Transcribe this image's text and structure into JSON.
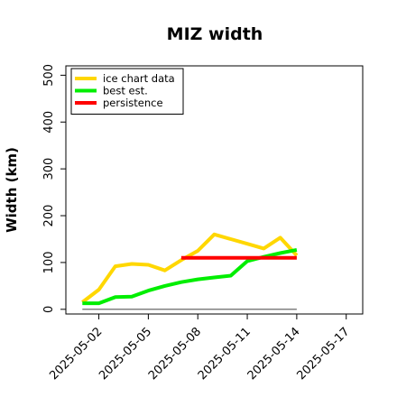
{
  "chart_data": {
    "type": "line",
    "title": "MIZ width",
    "xlabel": "",
    "ylabel": "Width (km)",
    "x": [
      "2025-05-01",
      "2025-05-02",
      "2025-05-03",
      "2025-05-04",
      "2025-05-05",
      "2025-05-06",
      "2025-05-07",
      "2025-05-08",
      "2025-05-09",
      "2025-05-10",
      "2025-05-11",
      "2025-05-12",
      "2025-05-13",
      "2025-05-14"
    ],
    "xlim": [
      "2025-04-30",
      "2025-05-18"
    ],
    "xticks": [
      "2025-05-02",
      "2025-05-05",
      "2025-05-08",
      "2025-05-11",
      "2025-05-14",
      "2025-05-17"
    ],
    "ylim": [
      -10,
      520
    ],
    "yticks": [
      0,
      100,
      200,
      300,
      400,
      500
    ],
    "grid": false,
    "legend_position": "top-left",
    "series": [
      {
        "name": "ice chart data",
        "color": "#FFD700",
        "values": [
          15,
          42,
          92,
          97,
          95,
          83,
          105,
          125,
          160,
          150,
          140,
          130,
          153,
          115
        ]
      },
      {
        "name": "best est.",
        "color": "#00EE00",
        "values": [
          13,
          13,
          26,
          27,
          40,
          50,
          58,
          64,
          68,
          72,
          103,
          112,
          120,
          127
        ]
      },
      {
        "name": "persistence",
        "color": "#FF0000",
        "x": [
          "2025-05-07",
          "2025-05-14"
        ],
        "values": [
          110,
          110
        ]
      }
    ],
    "reference_line": {
      "color": "#808080",
      "x": [
        "2025-05-01",
        "2025-05-14"
      ],
      "values": [
        0,
        0
      ]
    }
  }
}
